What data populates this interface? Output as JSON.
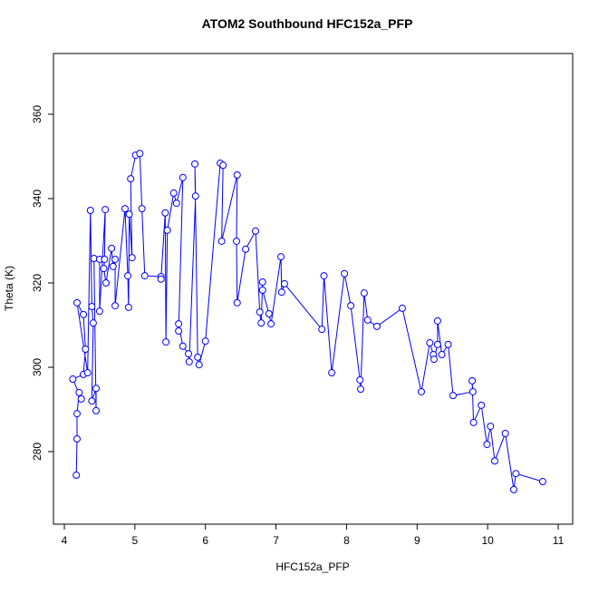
{
  "chart_data": {
    "type": "line",
    "markers": "circle",
    "title": "ATOM2 Southbound HFC152a_PFP",
    "x_label": "HFC152a_PFP",
    "y_label": "Theta (K)",
    "color": "#0000ff",
    "x": [
      4.17,
      4.18,
      4.18,
      4.21,
      4.24,
      4.12,
      4.27,
      4.3,
      4.27,
      4.18,
      4.33,
      4.37,
      4.39,
      4.41,
      4.39,
      4.45,
      4.45,
      4.42,
      4.5,
      4.5,
      4.58,
      4.57,
      4.56,
      4.59,
      4.67,
      4.69,
      4.72,
      4.72,
      4.86,
      4.9,
      4.91,
      4.92,
      4.96,
      4.94,
      5.01,
      5.07,
      5.1,
      5.14,
      5.37,
      5.37,
      5.43,
      5.44,
      5.46,
      5.55,
      5.59,
      5.68,
      5.62,
      5.62,
      5.68,
      5.76,
      5.77,
      5.86,
      5.85,
      5.89,
      5.91,
      6.0,
      6.21,
      6.25,
      6.23,
      6.45,
      6.44,
      6.45,
      6.57,
      6.71,
      6.77,
      6.79,
      6.81,
      6.81,
      6.9,
      6.93,
      7.07,
      7.08,
      7.12,
      7.65,
      7.68,
      7.79,
      7.97,
      8.06,
      8.19,
      8.2,
      8.25,
      8.3,
      8.43,
      8.79,
      9.06,
      9.18,
      9.23,
      9.24,
      9.29,
      9.29,
      9.35,
      9.44,
      9.51,
      9.79,
      9.78,
      9.8,
      9.91,
      9.99,
      10.04,
      10.1,
      10.25,
      10.37,
      10.4,
      10.78
    ],
    "values": [
      274.4,
      283,
      289,
      294,
      292.5,
      297.2,
      298.3,
      304.3,
      312.5,
      315.3,
      298.7,
      337.2,
      314.4,
      310.5,
      292,
      295,
      289.7,
      325.8,
      325.6,
      313.3,
      337.4,
      325.6,
      323.4,
      320,
      328.2,
      323.9,
      325.6,
      314.6,
      337.6,
      321.7,
      314.2,
      336.3,
      326,
      344.7,
      350.3,
      350.7,
      337.6,
      321.7,
      321.5,
      320.9,
      336.6,
      306,
      332.5,
      341.3,
      338.9,
      345,
      308.6,
      310.3,
      305,
      303.2,
      301.3,
      340.6,
      348.2,
      302.4,
      300.6,
      306.2,
      348.4,
      347.9,
      329.9,
      345.6,
      329.9,
      315.3,
      328,
      332.3,
      313.1,
      310.5,
      320.2,
      318.3,
      312.7,
      310.3,
      326.2,
      317.8,
      319.8,
      309,
      321.7,
      298.7,
      322.2,
      314.6,
      297,
      294.8,
      317.6,
      311.2,
      309.7,
      314,
      294.2,
      305.8,
      303,
      301.9,
      305.4,
      311,
      303,
      305.4,
      293.3,
      294.2,
      296.8,
      286.9,
      291,
      281.7,
      286,
      277.8,
      284.3,
      271,
      274.8,
      272.9
    ],
    "xlim": [
      3.846,
      11.205
    ],
    "ylim": [
      262.8,
      374.4
    ],
    "xticks": [
      4,
      5,
      6,
      7,
      8,
      9,
      10,
      11
    ],
    "yticks": [
      280,
      300,
      320,
      340,
      360
    ]
  }
}
